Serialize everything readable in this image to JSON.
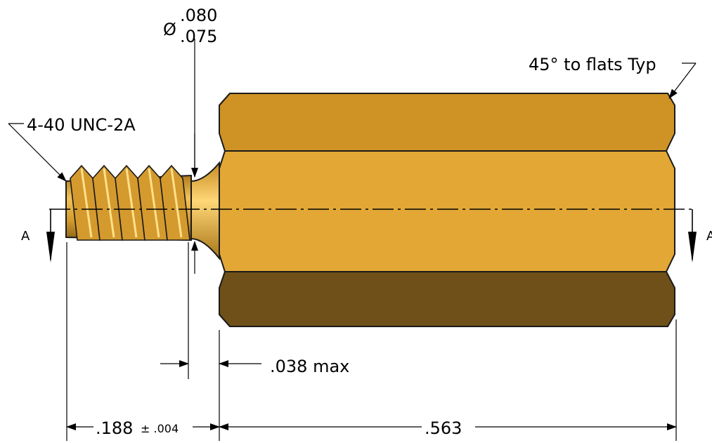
{
  "drawing": {
    "thread_callout": "4-40 UNC-2A",
    "undercut_diameter": {
      "symbol": "Ø",
      "upper": ".080",
      "lower": ".075"
    },
    "chamfer_callout": "45° to flats Typ",
    "undercut_width": ".038 max",
    "stud_length": {
      "value": ".188",
      "tolerance": "± .004"
    },
    "body_length": ".563",
    "section_label_left": "A",
    "section_label_right": "A"
  },
  "colors": {
    "body_light": "#E3A735",
    "body_top": "#CF9325",
    "body_bottom": "#6E5018",
    "outline": "#1a1a1a",
    "thread": "#D49A2E",
    "line": "#000000"
  }
}
